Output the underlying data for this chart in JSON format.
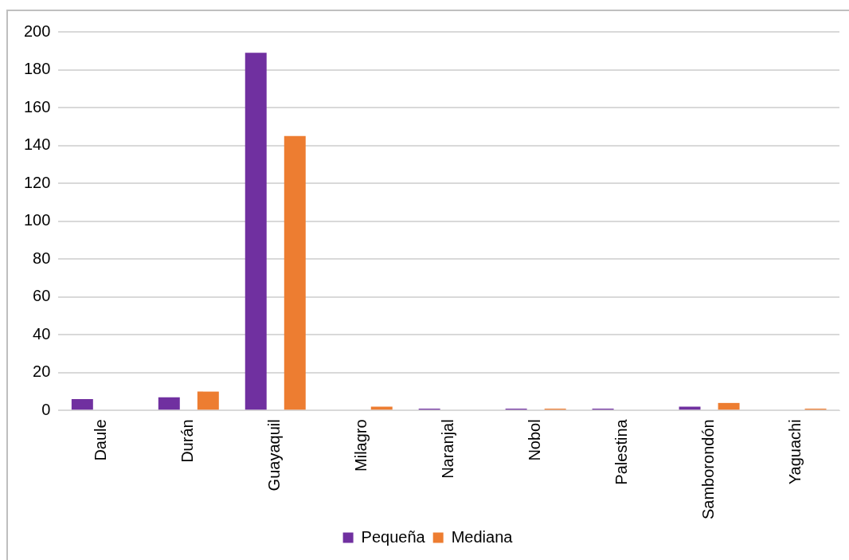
{
  "chart_data": {
    "type": "bar",
    "categories": [
      "Daule",
      "Durán",
      "Guayaquil",
      "Milagro",
      "Naranjal",
      "Nobol",
      "Palestina",
      "Samborondón",
      "Yaguachi"
    ],
    "series": [
      {
        "name": "Pequeña",
        "color": "#7030a0",
        "values": [
          6,
          7,
          189,
          null,
          1,
          1,
          1,
          2,
          null
        ]
      },
      {
        "name": "Mediana",
        "color": "#ed7d31",
        "values": [
          null,
          10,
          145,
          2,
          null,
          1,
          null,
          4,
          1
        ]
      }
    ],
    "ylim": [
      0,
      200
    ],
    "yticks": [
      0,
      20,
      40,
      60,
      80,
      100,
      120,
      140,
      160,
      180,
      200
    ],
    "grid": "y",
    "legend": "bottom"
  }
}
